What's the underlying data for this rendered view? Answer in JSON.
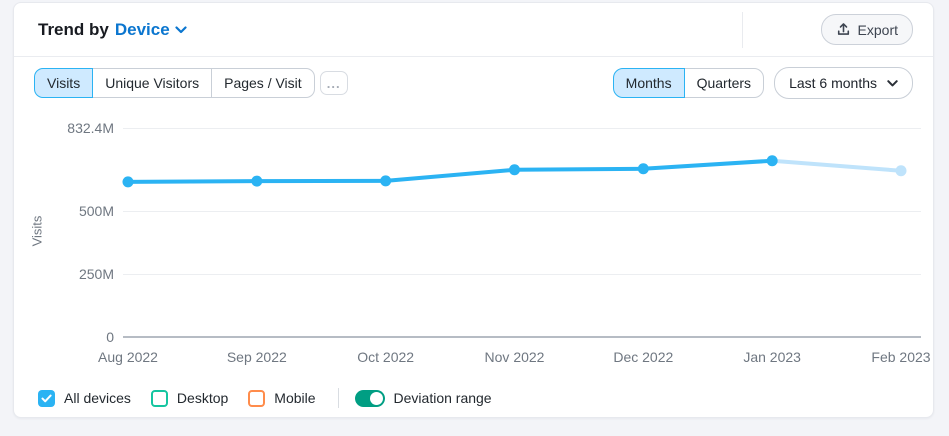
{
  "header": {
    "title_prefix": "Trend by",
    "title_link": "Device",
    "export_label": "Export"
  },
  "toolbar": {
    "metric_tabs": [
      {
        "label": "Visits",
        "selected": true
      },
      {
        "label": "Unique Visitors",
        "selected": false
      },
      {
        "label": "Pages / Visit",
        "selected": false
      }
    ],
    "more_label": "...",
    "period_tabs": [
      {
        "label": "Months",
        "selected": true
      },
      {
        "label": "Quarters",
        "selected": false
      }
    ],
    "range_dropdown": "Last 6 months"
  },
  "chart_data": {
    "type": "line",
    "title": "",
    "xlabel": "",
    "ylabel": "Visits",
    "unit": "M visits",
    "categories": [
      "Aug 2022",
      "Sep 2022",
      "Oct 2022",
      "Nov 2022",
      "Dec 2022",
      "Jan 2023",
      "Feb 2023"
    ],
    "series": [
      {
        "name": "All devices",
        "values": [
          618,
          621,
          622,
          666,
          670,
          702,
          662
        ]
      }
    ],
    "ylim": [
      0,
      832.4
    ],
    "y_ticks": [
      {
        "label": "832.4M",
        "value": 832.4
      },
      {
        "label": "500M",
        "value": 500
      },
      {
        "label": "250M",
        "value": 250
      },
      {
        "label": "0",
        "value": 0
      }
    ],
    "grid": "horizontal",
    "incomplete_last_point": true,
    "colors": {
      "line": "#2bb3f3",
      "faded": "#bfe3fb"
    }
  },
  "legend": {
    "items": [
      {
        "label": "All devices",
        "checked": true,
        "color": "#2bb3f3"
      },
      {
        "label": "Desktop",
        "checked": false,
        "color": "#15c5a0"
      },
      {
        "label": "Mobile",
        "checked": false,
        "color": "#ff8c4b"
      }
    ],
    "toggle": {
      "label": "Deviation range",
      "on": true,
      "color": "#009e83"
    }
  }
}
